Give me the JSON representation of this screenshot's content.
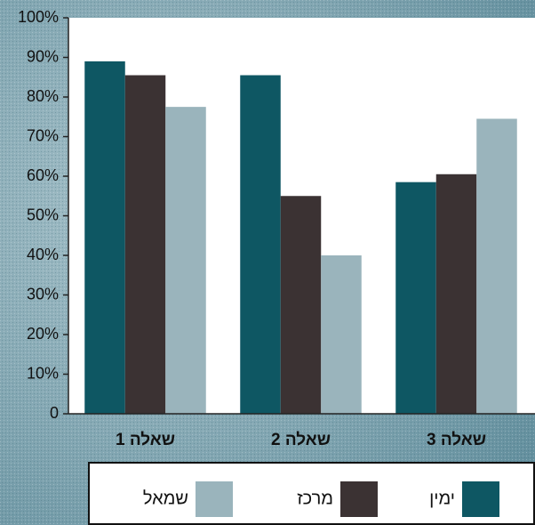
{
  "chart_data": {
    "type": "bar",
    "categories": [
      "שאלה 1",
      "שאלה 2",
      "שאלה 3"
    ],
    "series": [
      {
        "name": "ימין",
        "color": "#0e5763",
        "values": [
          89,
          85.5,
          58.5
        ]
      },
      {
        "name": "מרכז",
        "color": "#3b3233",
        "values": [
          85.5,
          55,
          60.5
        ]
      },
      {
        "name": "שמאל",
        "color": "#9ab4bc",
        "values": [
          77.5,
          40,
          74.5
        ]
      }
    ],
    "ylim": [
      0,
      100
    ],
    "yticks": [
      0,
      {
        "value": 10,
        "label": "10%"
      },
      {
        "value": 20,
        "label": "20%"
      },
      {
        "value": 30,
        "label": "30%"
      },
      {
        "value": 40,
        "label": "40%"
      },
      {
        "value": 50,
        "label": "50%"
      },
      {
        "value": 60,
        "label": "60%"
      },
      {
        "value": 70,
        "label": "70%"
      },
      {
        "value": 80,
        "label": "80%"
      },
      {
        "value": 90,
        "label": "90%"
      },
      {
        "value": 100,
        "label": "100%"
      }
    ],
    "legend": "bottom"
  }
}
